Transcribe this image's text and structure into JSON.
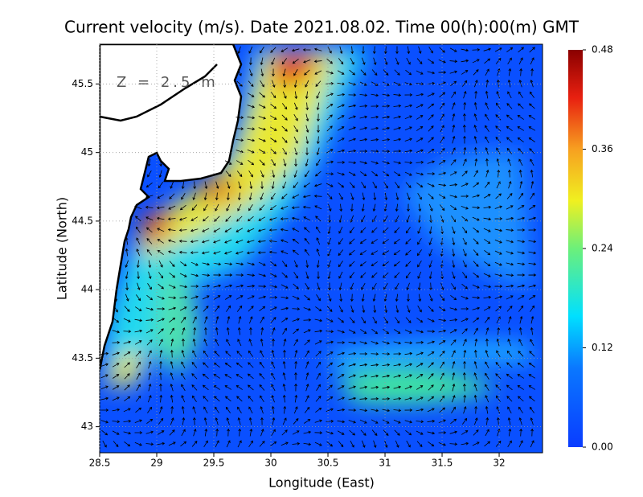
{
  "chart_data": {
    "type": "heatmap",
    "title": "Current velocity (m/s). Date 2021.08.02. Time 00(h):00(m) GMT",
    "annotation": "Z = 2.5 m",
    "x_label": "Longitude (East)",
    "y_label": "Latitude (North)",
    "xlim": [
      28.5,
      32.38
    ],
    "ylim": [
      42.81,
      45.79
    ],
    "xticks": [
      28.5,
      29,
      29.5,
      30,
      30.5,
      31,
      31.5,
      32
    ],
    "yticks": [
      43,
      43.5,
      44,
      44.5,
      45,
      45.5
    ],
    "grid": true,
    "colorbar": {
      "lim": [
        0,
        0.48
      ],
      "ticks": [
        {
          "value": 0,
          "label": "0.00"
        },
        0.12,
        0.24,
        0.36,
        0.48
      ]
    }
  }
}
